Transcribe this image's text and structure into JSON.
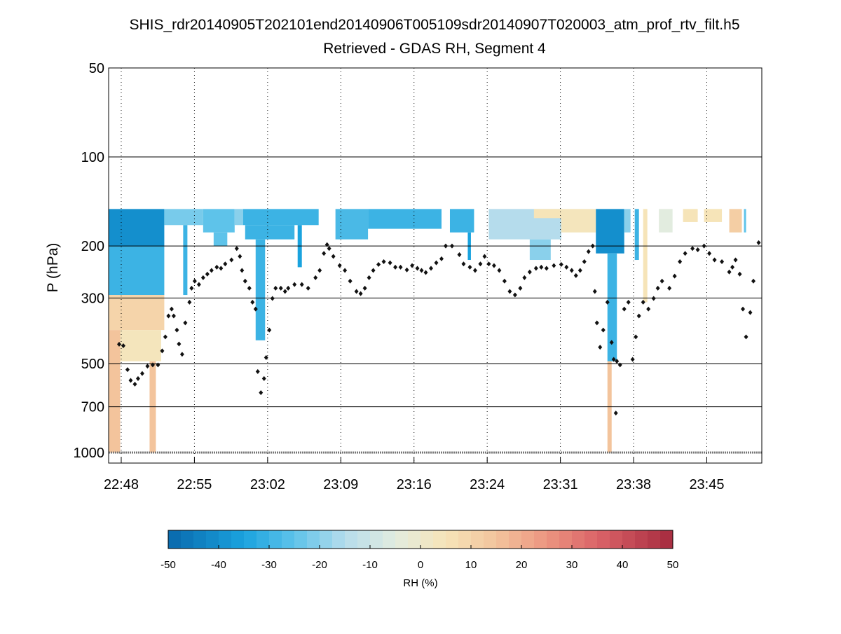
{
  "chart_data": {
    "type": "heatmap",
    "title": "SHIS_rdr20140905T202101end20140906T005109sdr20140907T020003_atm_prof_rtv_filt.h5",
    "subtitle": "Retrieved - GDAS RH, Segment 4",
    "xlabel": "",
    "ylabel": "P (hPa)",
    "x_units": "minutes since 22:48",
    "xlim": [
      -1.2,
      61.0
    ],
    "ylim": [
      50,
      1085
    ],
    "y_scale": "log",
    "y_reversed": true,
    "yticks": [
      50,
      100,
      200,
      300,
      500,
      700,
      1000
    ],
    "ytick_labels": [
      "50",
      "100",
      "200",
      "300",
      "500",
      "700",
      "1000"
    ],
    "xticks": [
      0,
      6.97,
      13.94,
      20.91,
      27.88,
      34.85,
      41.82,
      48.79,
      55.76
    ],
    "xtick_labels": [
      "22:48",
      "22:55",
      "23:02",
      "23:09",
      "23:16",
      "23:24",
      "23:31",
      "23:38",
      "23:45"
    ],
    "grid": "horizontal solid at y ticks, vertical dotted at x ticks",
    "colorbar": {
      "label": "RH (%)",
      "range": [
        -50,
        50
      ],
      "ticks": [
        -50,
        -40,
        -30,
        -20,
        -10,
        0,
        10,
        20,
        30,
        40,
        50
      ],
      "tick_labels": [
        "-50",
        "-40",
        "-30",
        "-20",
        "-10",
        "0",
        "10",
        "20",
        "30",
        "40",
        "50"
      ],
      "colormap_stops": [
        {
          "v": -50,
          "c": "#0868ac"
        },
        {
          "v": -35,
          "c": "#1aa3de"
        },
        {
          "v": -25,
          "c": "#5ec3ea"
        },
        {
          "v": -15,
          "c": "#b5dcec"
        },
        {
          "v": -5,
          "c": "#e2ecdf"
        },
        {
          "v": 5,
          "c": "#f6e4b8"
        },
        {
          "v": 15,
          "c": "#f3c49c"
        },
        {
          "v": 25,
          "c": "#ec9580"
        },
        {
          "v": 35,
          "c": "#db6468"
        },
        {
          "v": 50,
          "c": "#a62a3e"
        }
      ]
    },
    "cells": [
      {
        "t": [
          -1.2,
          4.1
        ],
        "p": [
          150,
          200
        ],
        "v": -40
      },
      {
        "t": [
          -1.2,
          4.1
        ],
        "p": [
          200,
          293
        ],
        "v": -30
      },
      {
        "t": [
          -1.2,
          4.1
        ],
        "p": [
          293,
          385
        ],
        "v": 10
      },
      {
        "t": [
          -1.2,
          -0.1
        ],
        "p": [
          385,
          1000
        ],
        "v": 15
      },
      {
        "t": [
          -0.1,
          3.8
        ],
        "p": [
          385,
          491
        ],
        "v": 4
      },
      {
        "t": [
          2.7,
          3.3
        ],
        "p": [
          491,
          1000
        ],
        "v": 15
      },
      {
        "t": [
          4.1,
          7.8
        ],
        "p": [
          150,
          170
        ],
        "v": -22
      },
      {
        "t": [
          5.9,
          6.3
        ],
        "p": [
          170,
          293
        ],
        "v": -30
      },
      {
        "t": [
          7.8,
          10.8
        ],
        "p": [
          150,
          180
        ],
        "v": -25
      },
      {
        "t": [
          8.8,
          10.1
        ],
        "p": [
          180,
          200
        ],
        "v": -25
      },
      {
        "t": [
          10.8,
          11.6
        ],
        "p": [
          150,
          170
        ],
        "v": -20
      },
      {
        "t": [
          11.6,
          18.8
        ],
        "p": [
          150,
          170
        ],
        "v": -30
      },
      {
        "t": [
          11.8,
          16.5
        ],
        "p": [
          170,
          190
        ],
        "v": -30
      },
      {
        "t": [
          12.8,
          13.7
        ],
        "p": [
          190,
          417
        ],
        "v": -30
      },
      {
        "t": [
          16.8,
          17.2
        ],
        "p": [
          170,
          236
        ],
        "v": -35
      },
      {
        "t": [
          20.4,
          23.5
        ],
        "p": [
          150,
          190
        ],
        "v": -28
      },
      {
        "t": [
          23.5,
          30.5
        ],
        "p": [
          150,
          175
        ],
        "v": -30
      },
      {
        "t": [
          31.3,
          33.6
        ],
        "p": [
          150,
          180
        ],
        "v": -30
      },
      {
        "t": [
          33.0,
          33.3
        ],
        "p": [
          180,
          223
        ],
        "v": -35
      },
      {
        "t": [
          35.0,
          41.9
        ],
        "p": [
          150,
          190
        ],
        "v": -15
      },
      {
        "t": [
          38.9,
          40.9
        ],
        "p": [
          190,
          223
        ],
        "v": -20
      },
      {
        "t": [
          39.3,
          41.9
        ],
        "p": [
          150,
          161
        ],
        "v": 5
      },
      {
        "t": [
          41.9,
          45.2
        ],
        "p": [
          150,
          180
        ],
        "v": 4
      },
      {
        "t": [
          45.2,
          47.9
        ],
        "p": [
          150,
          212
        ],
        "v": -40
      },
      {
        "t": [
          46.3,
          47.2
        ],
        "p": [
          212,
          491
        ],
        "v": -30
      },
      {
        "t": [
          46.3,
          46.7
        ],
        "p": [
          491,
          1000
        ],
        "v": 15
      },
      {
        "t": [
          47.9,
          48.5
        ],
        "p": [
          150,
          180
        ],
        "v": -20
      },
      {
        "t": [
          48.9,
          49.3
        ],
        "p": [
          150,
          223
        ],
        "v": -30
      },
      {
        "t": [
          49.7,
          50.1
        ],
        "p": [
          150,
          310
        ],
        "v": 5
      },
      {
        "t": [
          51.2,
          52.5
        ],
        "p": [
          150,
          180
        ],
        "v": -5
      },
      {
        "t": [
          53.5,
          54.9
        ],
        "p": [
          150,
          166
        ],
        "v": 5
      },
      {
        "t": [
          55.5,
          57.2
        ],
        "p": [
          150,
          166
        ],
        "v": 5
      },
      {
        "t": [
          57.9,
          59.1
        ],
        "p": [
          150,
          180
        ],
        "v": 12
      },
      {
        "t": [
          59.3,
          59.5
        ],
        "p": [
          150,
          180
        ],
        "v": -25
      }
    ],
    "points": [
      [
        -0.2,
        430
      ],
      [
        0.2,
        435
      ],
      [
        0.6,
        524
      ],
      [
        0.9,
        570
      ],
      [
        1.3,
        587
      ],
      [
        1.6,
        562
      ],
      [
        2.0,
        540
      ],
      [
        2.5,
        510
      ],
      [
        3.0,
        505
      ],
      [
        3.5,
        505
      ],
      [
        3.9,
        453
      ],
      [
        4.2,
        406
      ],
      [
        4.5,
        345
      ],
      [
        4.8,
        327
      ],
      [
        5.0,
        345
      ],
      [
        5.3,
        385
      ],
      [
        5.5,
        429
      ],
      [
        5.8,
        465
      ],
      [
        6.1,
        364
      ],
      [
        6.5,
        310
      ],
      [
        6.7,
        278
      ],
      [
        7.0,
        263
      ],
      [
        7.4,
        270
      ],
      [
        7.8,
        256
      ],
      [
        8.2,
        249
      ],
      [
        8.6,
        242
      ],
      [
        9.1,
        236
      ],
      [
        9.5,
        238
      ],
      [
        9.9,
        230
      ],
      [
        10.5,
        223
      ],
      [
        11.0,
        204
      ],
      [
        11.3,
        217
      ],
      [
        11.5,
        242
      ],
      [
        11.8,
        263
      ],
      [
        12.2,
        278
      ],
      [
        12.5,
        310
      ],
      [
        12.8,
        327
      ],
      [
        13.0,
        532
      ],
      [
        13.3,
        627
      ],
      [
        13.6,
        562
      ],
      [
        13.8,
        477
      ],
      [
        14.1,
        385
      ],
      [
        14.4,
        301
      ],
      [
        14.7,
        278
      ],
      [
        15.2,
        278
      ],
      [
        15.6,
        285
      ],
      [
        15.9,
        278
      ],
      [
        16.5,
        270
      ],
      [
        17.2,
        270
      ],
      [
        17.8,
        278
      ],
      [
        18.5,
        256
      ],
      [
        18.9,
        242
      ],
      [
        19.3,
        212
      ],
      [
        19.6,
        198
      ],
      [
        19.8,
        204
      ],
      [
        20.2,
        217
      ],
      [
        20.8,
        233
      ],
      [
        21.3,
        242
      ],
      [
        21.8,
        263
      ],
      [
        22.4,
        285
      ],
      [
        22.8,
        290
      ],
      [
        23.2,
        278
      ],
      [
        23.6,
        256
      ],
      [
        24.0,
        242
      ],
      [
        24.5,
        231
      ],
      [
        25.0,
        226
      ],
      [
        25.6,
        228
      ],
      [
        26.1,
        236
      ],
      [
        26.6,
        236
      ],
      [
        27.2,
        241
      ],
      [
        27.7,
        233
      ],
      [
        28.2,
        238
      ],
      [
        28.6,
        242
      ],
      [
        29.0,
        246
      ],
      [
        29.5,
        238
      ],
      [
        30.0,
        228
      ],
      [
        30.5,
        221
      ],
      [
        30.9,
        200
      ],
      [
        31.5,
        200
      ],
      [
        32.2,
        214
      ],
      [
        32.6,
        230
      ],
      [
        33.2,
        236
      ],
      [
        33.7,
        242
      ],
      [
        34.2,
        230
      ],
      [
        34.6,
        217
      ],
      [
        35.0,
        230
      ],
      [
        35.5,
        233
      ],
      [
        36.0,
        242
      ],
      [
        36.5,
        263
      ],
      [
        37.0,
        285
      ],
      [
        37.5,
        293
      ],
      [
        38.0,
        278
      ],
      [
        38.4,
        256
      ],
      [
        38.9,
        245
      ],
      [
        39.5,
        238
      ],
      [
        40.0,
        236
      ],
      [
        40.5,
        238
      ],
      [
        41.2,
        233
      ],
      [
        41.9,
        231
      ],
      [
        42.4,
        236
      ],
      [
        42.9,
        242
      ],
      [
        43.3,
        252
      ],
      [
        43.7,
        242
      ],
      [
        44.1,
        226
      ],
      [
        44.5,
        209
      ],
      [
        44.9,
        200
      ],
      [
        45.1,
        285
      ],
      [
        45.3,
        364
      ],
      [
        45.6,
        440
      ],
      [
        45.9,
        385
      ],
      [
        46.3,
        310
      ],
      [
        46.7,
        424
      ],
      [
        46.9,
        484
      ],
      [
        47.1,
        735
      ],
      [
        47.2,
        491
      ],
      [
        47.5,
        505
      ],
      [
        47.9,
        327
      ],
      [
        48.3,
        310
      ],
      [
        48.7,
        484
      ],
      [
        49.0,
        406
      ],
      [
        49.3,
        345
      ],
      [
        49.7,
        310
      ],
      [
        50.2,
        327
      ],
      [
        50.7,
        301
      ],
      [
        51.1,
        278
      ],
      [
        51.5,
        263
      ],
      [
        52.2,
        278
      ],
      [
        52.7,
        253
      ],
      [
        53.2,
        226
      ],
      [
        53.7,
        212
      ],
      [
        54.4,
        204
      ],
      [
        54.9,
        206
      ],
      [
        55.5,
        200
      ],
      [
        56.0,
        212
      ],
      [
        56.5,
        223
      ],
      [
        57.2,
        226
      ],
      [
        57.9,
        245
      ],
      [
        58.2,
        236
      ],
      [
        58.5,
        223
      ],
      [
        58.9,
        249
      ],
      [
        59.2,
        327
      ],
      [
        59.5,
        406
      ],
      [
        59.9,
        336
      ],
      [
        60.2,
        263
      ],
      [
        60.7,
        195
      ]
    ],
    "surface_pressure": 1000
  }
}
